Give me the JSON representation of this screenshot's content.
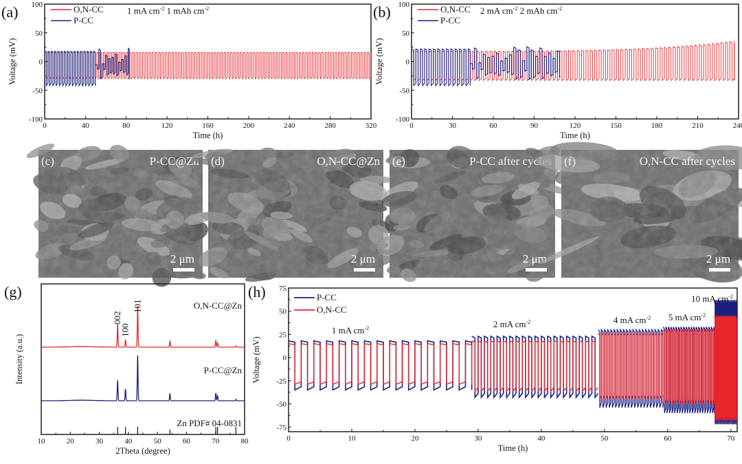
{
  "figure": {
    "panels": [
      "(a)",
      "(b)",
      "(c)",
      "(d)",
      "(e)",
      "(f)",
      "(g)",
      "(h)"
    ]
  },
  "colors": {
    "red": "#e8262b",
    "blue": "#1b1f7e",
    "axis": "#111111",
    "sem_base": "#6e6e6e"
  },
  "sem_images": [
    {
      "panel": "(c)",
      "label": "P-CC@Zn",
      "scale_bar": "2 μm",
      "texture": "flaky-dense"
    },
    {
      "panel": "(d)",
      "label": "O,N-CC@Zn",
      "scale_bar": "2 μm",
      "texture": "smooth-layered"
    },
    {
      "panel": "(e)",
      "label": "P-CC after cycles",
      "scale_bar": "2 μm",
      "texture": "porous-flakes"
    },
    {
      "panel": "(f)",
      "label": "O,N-CC after cycles",
      "scale_bar": "2 μm",
      "texture": "large-plates"
    }
  ],
  "chart_data": [
    {
      "panel": "(a)",
      "type": "line",
      "title": "",
      "annotation": "1 mA cm-2 1 mAh cm-2",
      "annotation_parts": [
        "1 mA cm",
        "-2",
        " 1 mAh cm",
        "-2"
      ],
      "xlabel": "Time (h)",
      "ylabel": "Voltage (mV)",
      "xlim": [
        0,
        320
      ],
      "ylim": [
        -100,
        100
      ],
      "xticks": [
        0,
        40,
        80,
        120,
        160,
        200,
        240,
        280,
        320
      ],
      "yticks": [
        -100,
        -50,
        0,
        50,
        100
      ],
      "legend": {
        "position": "top-left",
        "entries": [
          "O,N-CC",
          "P-CC"
        ]
      },
      "series": [
        {
          "name": "O,N-CC",
          "color": "red",
          "t_start": 0,
          "t_end": 320,
          "cycle_period_h": 2,
          "upper_mV": 16,
          "lower_mV": -30
        },
        {
          "name": "P-CC",
          "color": "blue",
          "t_start": 0,
          "t_end": 83,
          "cycle_period_h": 2,
          "upper_mV": 18,
          "lower_mV": -42,
          "failure_at_h": 50
        }
      ]
    },
    {
      "panel": "(b)",
      "type": "line",
      "title": "",
      "annotation": "2 mA cm-2 2 mAh cm-2",
      "annotation_parts": [
        "2 mA cm",
        "-2",
        " 2 mAh cm",
        "-2"
      ],
      "xlabel": "Time (h)",
      "ylabel": "Voltage (mV)",
      "xlim": [
        0,
        240
      ],
      "ylim": [
        -100,
        100
      ],
      "xticks": [
        0,
        30,
        60,
        90,
        120,
        150,
        180,
        210,
        240
      ],
      "yticks": [
        -100,
        -50,
        0,
        50,
        100
      ],
      "legend": {
        "position": "top-left",
        "entries": [
          "O,N-CC",
          "P-CC"
        ]
      },
      "series": [
        {
          "name": "O,N-CC",
          "color": "red",
          "t_start": 0,
          "t_end": 237,
          "cycle_period_h": 2,
          "upper_mV": 18,
          "lower_mV": -33,
          "end_upper_mV": 36
        },
        {
          "name": "P-CC",
          "color": "blue",
          "t_start": 0,
          "t_end": 109,
          "cycle_period_h": 2,
          "upper_mV": 22,
          "lower_mV": -42,
          "failure_at_h": 43
        }
      ]
    },
    {
      "panel": "(g)",
      "type": "line",
      "title": "",
      "xlabel": "2Theta (degree)",
      "ylabel": "Intensity (a.u.)",
      "xlim": [
        10,
        80
      ],
      "xticks": [
        10,
        20,
        30,
        40,
        50,
        60,
        70,
        80
      ],
      "series": [
        {
          "name": "O,N-CC@Zn",
          "color": "red",
          "peaks": [
            [
              36.3,
              0.55
            ],
            [
              39.0,
              0.18
            ],
            [
              43.2,
              1.0
            ],
            [
              54.3,
              0.15
            ],
            [
              70.1,
              0.17
            ],
            [
              70.7,
              0.1
            ],
            [
              77.0,
              0.03
            ]
          ]
        },
        {
          "name": "P-CC@Zn",
          "color": "blue",
          "peaks": [
            [
              36.3,
              0.45
            ],
            [
              39.0,
              0.26
            ],
            [
              43.2,
              1.0
            ],
            [
              54.3,
              0.16
            ],
            [
              70.1,
              0.17
            ],
            [
              70.7,
              0.11
            ],
            [
              77.0,
              0.03
            ]
          ]
        },
        {
          "name": "Zn PDF# 04-0831",
          "color": "axis",
          "reference_lines": [
            36.3,
            39.0,
            43.2,
            54.3,
            70.1,
            70.7,
            77.0
          ]
        }
      ],
      "peak_labels": [
        {
          "text": "002",
          "x": 36.3
        },
        {
          "text": "100",
          "x": 39.0
        },
        {
          "text": "101",
          "x": 43.2
        }
      ]
    },
    {
      "panel": "(h)",
      "type": "line",
      "title": "",
      "xlabel": "Time (h)",
      "ylabel": "Voltage (mV)",
      "xlim": [
        0,
        71
      ],
      "ylim": [
        -80,
        75
      ],
      "xticks": [
        0,
        10,
        20,
        30,
        40,
        50,
        60,
        70
      ],
      "yticks": [
        -75,
        -50,
        -25,
        0,
        25,
        50,
        75
      ],
      "legend": {
        "position": "top-left",
        "entries": [
          "P-CC",
          "O,N-CC"
        ]
      },
      "rate_segments": [
        {
          "label": "1 mA cm-2",
          "label_parts": [
            "1 mA cm",
            "-2"
          ],
          "t_start": 0,
          "t_end": 29,
          "period_h": 2,
          "blue_upper": 18,
          "blue_lower": -35,
          "red_upper": 15,
          "red_lower": -29
        },
        {
          "label": "2 mA cm-2",
          "label_parts": [
            "2 mA cm",
            "-2"
          ],
          "t_start": 29,
          "t_end": 49,
          "period_h": 1,
          "blue_upper": 23,
          "blue_lower": -43,
          "red_upper": 18,
          "red_lower": -36
        },
        {
          "label": "4 mA cm-2",
          "label_parts": [
            "4 mA cm",
            "-2"
          ],
          "t_start": 49,
          "t_end": 59.3,
          "period_h": 0.5,
          "blue_upper": 30,
          "blue_lower": -54,
          "red_upper": 26,
          "red_lower": -45
        },
        {
          "label": "5 mA cm-2",
          "label_parts": [
            "5 mA cm",
            "-2"
          ],
          "t_start": 59.3,
          "t_end": 67.4,
          "period_h": 0.4,
          "blue_upper": 33,
          "blue_lower": -60,
          "red_upper": 30,
          "red_lower": -50
        },
        {
          "label": "10 mA cm-2",
          "label_parts": [
            "10 mA cm",
            "-2"
          ],
          "t_start": 67.4,
          "t_end": 71,
          "period_h": 0.2,
          "blue_upper": 62,
          "blue_lower": -72,
          "red_upper": 45,
          "red_lower": -68
        }
      ]
    }
  ]
}
